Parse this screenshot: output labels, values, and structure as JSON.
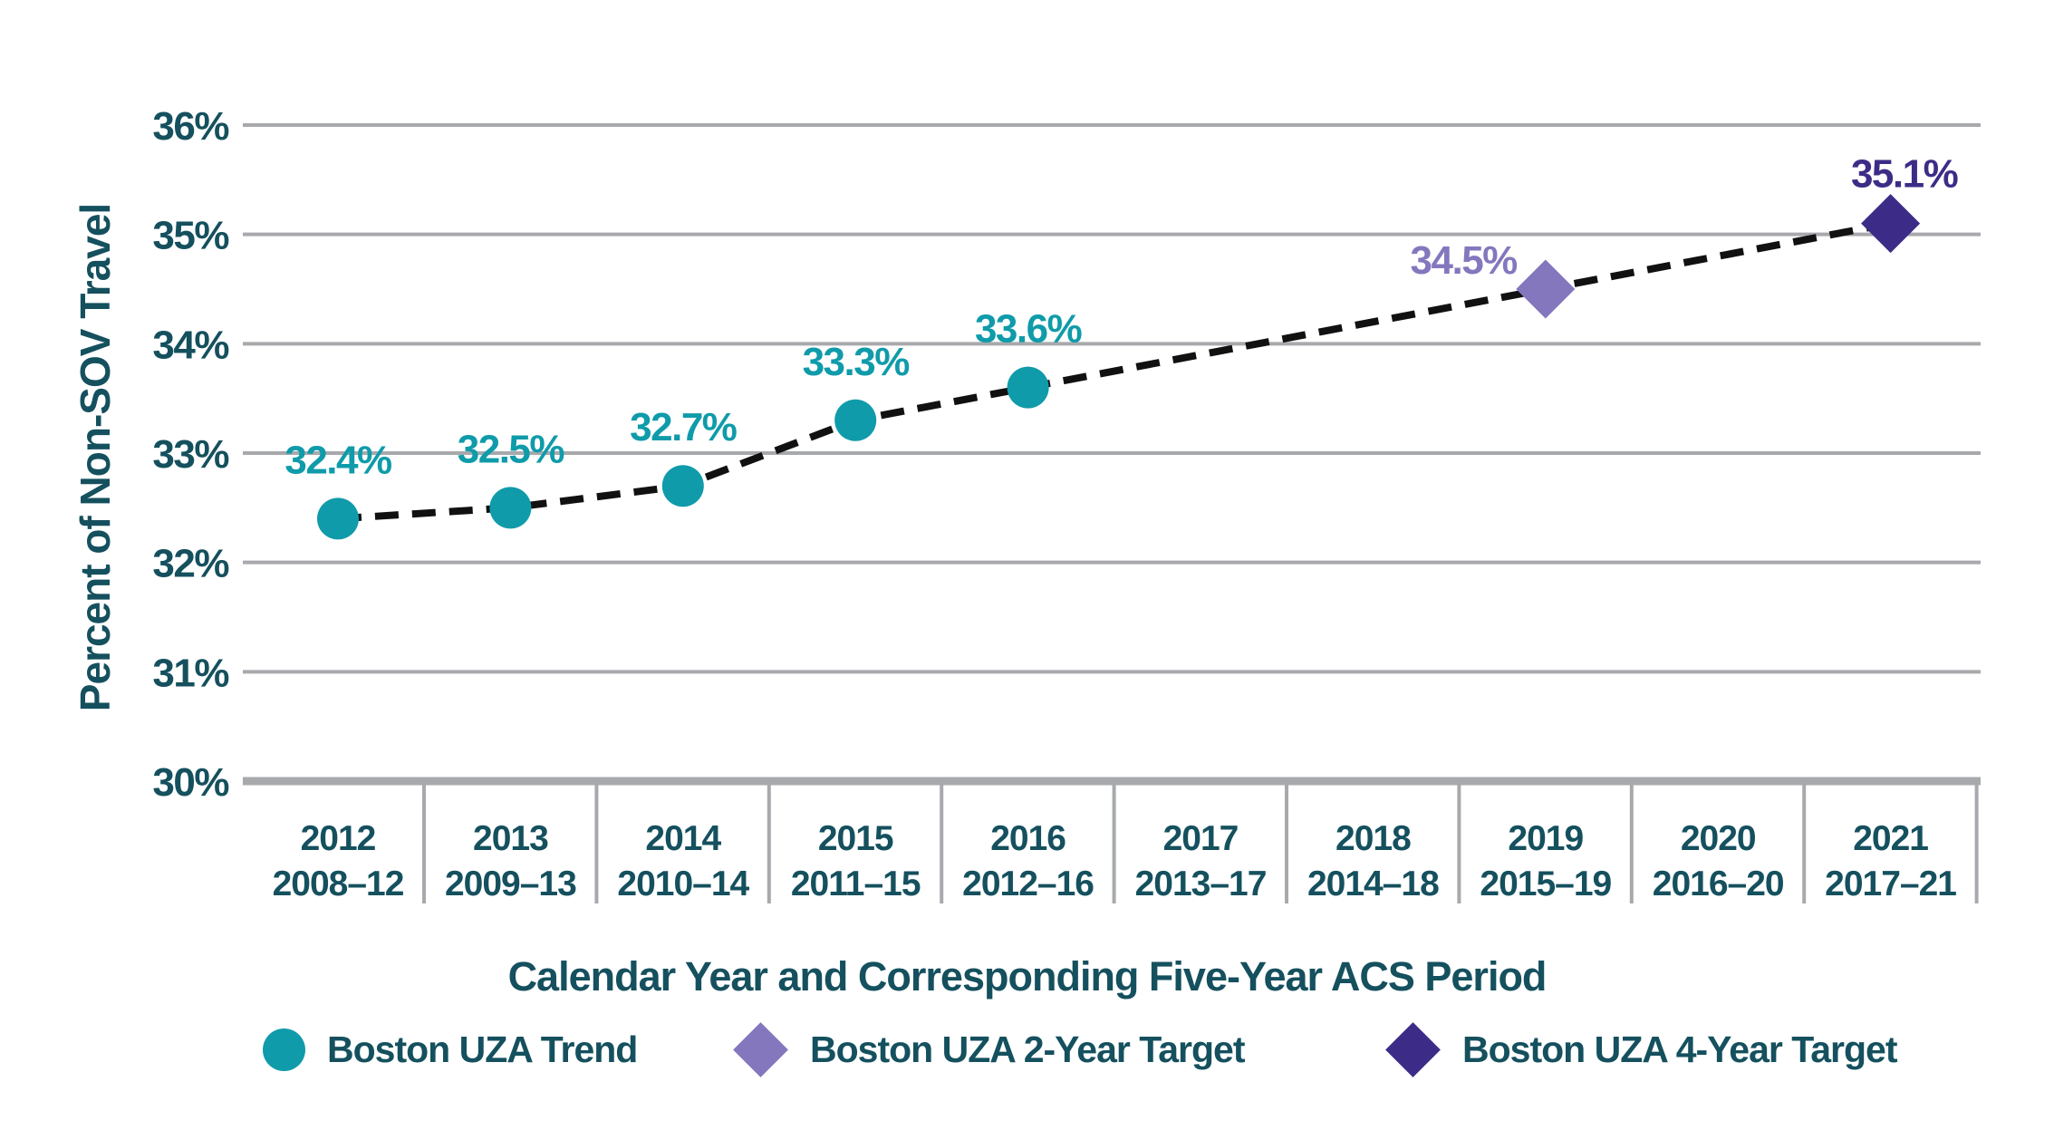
{
  "chart_data": {
    "type": "line",
    "subtype": "scatter points with dashed trend polyline",
    "title": "",
    "xlabel": "Calendar Year and Corresponding Five-Year ACS Period",
    "ylabel": "Percent of Non-SOV Travel",
    "ylim": [
      30,
      36
    ],
    "y_tick_step": 1,
    "y_tick_labels": [
      "30%",
      "31%",
      "32%",
      "33%",
      "34%",
      "35%",
      "36%"
    ],
    "grid": "horizontal gridlines on, vertical ticks below axis",
    "legend_position": "bottom",
    "categories": [
      {
        "year": "2012",
        "period": "2008–12"
      },
      {
        "year": "2013",
        "period": "2009–13"
      },
      {
        "year": "2014",
        "period": "2010–14"
      },
      {
        "year": "2015",
        "period": "2011–15"
      },
      {
        "year": "2016",
        "period": "2012–16"
      },
      {
        "year": "2017",
        "period": "2013–17"
      },
      {
        "year": "2018",
        "period": "2014–18"
      },
      {
        "year": "2019",
        "period": "2015–19"
      },
      {
        "year": "2020",
        "period": "2016–20"
      },
      {
        "year": "2021",
        "period": "2017–21"
      }
    ],
    "series": [
      {
        "name": "Boston UZA Trend",
        "marker": "circle",
        "color": "#0F9BAA",
        "label_color": "#0F9BAA",
        "points": [
          {
            "x": "2012",
            "value": 32.4,
            "label": "32.4%"
          },
          {
            "x": "2013",
            "value": 32.5,
            "label": "32.5%"
          },
          {
            "x": "2014",
            "value": 32.7,
            "label": "32.7%"
          },
          {
            "x": "2015",
            "value": 33.3,
            "label": "33.3%"
          },
          {
            "x": "2016",
            "value": 33.6,
            "label": "33.6%"
          }
        ]
      },
      {
        "name": "Boston UZA 2-Year Target",
        "marker": "diamond",
        "color": "#8477BE",
        "label_color": "#8477BE",
        "points": [
          {
            "x": "2019",
            "value": 34.5,
            "label": "34.5%"
          }
        ]
      },
      {
        "name": "Boston UZA 4-Year Target",
        "marker": "diamond",
        "color": "#3D2C87",
        "label_color": "#3D2C87",
        "points": [
          {
            "x": "2021",
            "value": 35.1,
            "label": "35.1%"
          }
        ]
      }
    ],
    "trend_line": {
      "style": "dashed",
      "color": "#111111",
      "connects": [
        "32.4%",
        "32.5%",
        "32.7%",
        "33.3%",
        "33.6%",
        "34.5%",
        "35.1%"
      ]
    },
    "colors": {
      "axis_text": "#15505E",
      "gridline": "#A7A9AC",
      "trend": "#0F9BAA",
      "target_2yr": "#8477BE",
      "target_4yr": "#3D2C87",
      "dashed_line": "#111111",
      "background": "#FFFFFF"
    }
  }
}
